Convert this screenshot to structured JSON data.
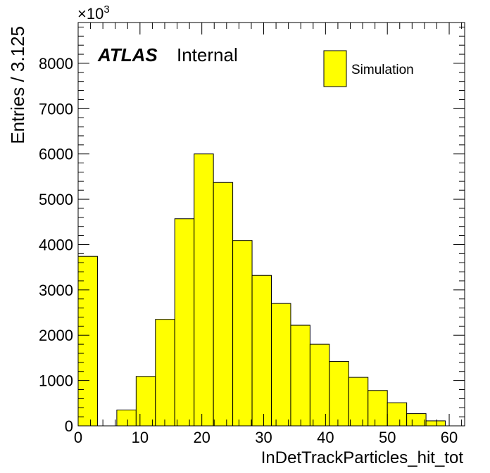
{
  "chart_data": {
    "type": "bar",
    "title": "",
    "xlabel": "InDetTrackParticles_hit_tot",
    "ylabel": "Entries / 3.125",
    "y_multiplier_label": "×10",
    "y_multiplier_exponent": "3",
    "xlim": [
      0,
      62.5
    ],
    "ylim": [
      0,
      8900
    ],
    "x_ticks": [
      0,
      10,
      20,
      30,
      40,
      50,
      60
    ],
    "y_ticks": [
      0,
      1000,
      2000,
      3000,
      4000,
      5000,
      6000,
      7000,
      8000
    ],
    "bin_width": 3.125,
    "bin_edges": [
      0,
      3.125,
      6.25,
      9.375,
      12.5,
      15.625,
      18.75,
      21.875,
      25,
      28.125,
      31.25,
      34.375,
      37.5,
      40.625,
      43.75,
      46.875,
      50,
      53.125,
      56.25,
      59.375
    ],
    "series": [
      {
        "name": "Simulation",
        "color": "#ffff00",
        "values": [
          3740,
          0,
          350,
          1090,
          2350,
          4570,
          6000,
          5370,
          4090,
          3320,
          2700,
          2220,
          1800,
          1420,
          1070,
          780,
          510,
          270,
          110
        ]
      }
    ],
    "legend_position": "top-right",
    "grid": false
  },
  "annotations": {
    "experiment": "ATLAS",
    "status": "Internal"
  },
  "colors": {
    "fill": "#ffff00",
    "line": "#000000",
    "background": "#ffffff"
  }
}
